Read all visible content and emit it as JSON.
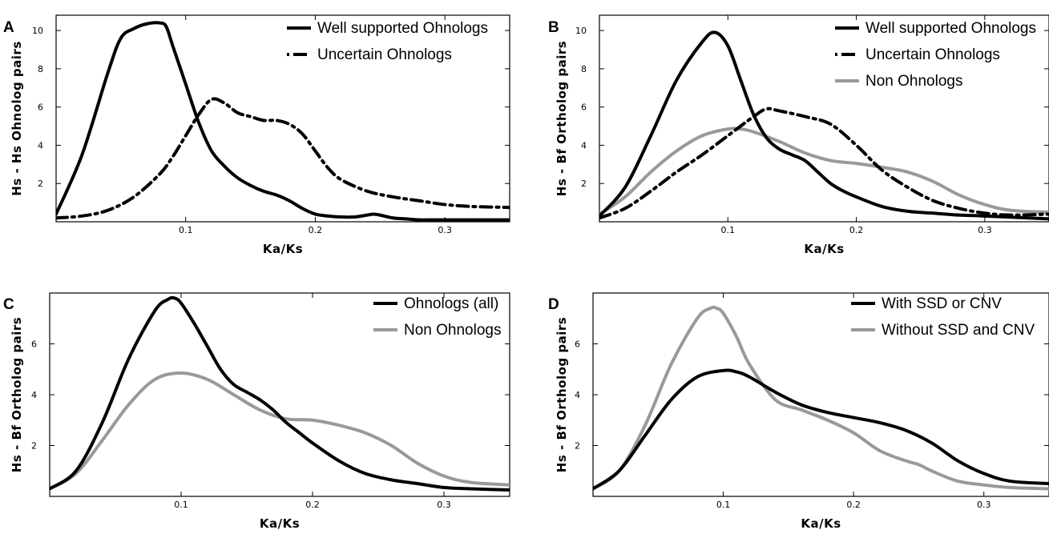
{
  "chart_data": [
    {
      "panel": "A",
      "type": "line",
      "xlabel": "Ka/Ks",
      "ylabel": "Hs - Hs Ohnolog pairs",
      "xlim": [
        0,
        0.35
      ],
      "ylim": [
        0,
        10.8
      ],
      "xticks": [
        0.1,
        0.2,
        0.3
      ],
      "yticks": [
        2,
        4,
        6,
        8,
        10
      ],
      "grid": false,
      "legend_position": "top-right",
      "series": [
        {
          "name": "Well supported Ohnologs",
          "color": "#000000",
          "dash": "solid",
          "x": [
            0,
            0.02,
            0.04,
            0.05,
            0.06,
            0.07,
            0.08,
            0.085,
            0.09,
            0.1,
            0.11,
            0.12,
            0.13,
            0.14,
            0.15,
            0.16,
            0.17,
            0.18,
            0.19,
            0.2,
            0.21,
            0.22,
            0.23,
            0.24,
            0.245,
            0.25,
            0.26,
            0.27,
            0.28,
            0.29,
            0.3,
            0.35
          ],
          "y": [
            0.4,
            3.5,
            7.8,
            9.6,
            10.1,
            10.35,
            10.4,
            10.2,
            9.2,
            7.2,
            5.2,
            3.7,
            2.9,
            2.3,
            1.9,
            1.6,
            1.4,
            1.1,
            0.7,
            0.4,
            0.3,
            0.25,
            0.25,
            0.35,
            0.4,
            0.35,
            0.2,
            0.15,
            0.1,
            0.1,
            0.1,
            0.1
          ]
        },
        {
          "name": "Uncertain Ohnologs",
          "color": "#000000",
          "dash": "dashdot",
          "x": [
            0,
            0.02,
            0.04,
            0.06,
            0.08,
            0.09,
            0.1,
            0.11,
            0.12,
            0.13,
            0.14,
            0.15,
            0.16,
            0.17,
            0.18,
            0.19,
            0.2,
            0.21,
            0.22,
            0.24,
            0.26,
            0.28,
            0.3,
            0.32,
            0.35
          ],
          "y": [
            0.2,
            0.3,
            0.6,
            1.3,
            2.5,
            3.4,
            4.5,
            5.6,
            6.4,
            6.2,
            5.7,
            5.5,
            5.3,
            5.3,
            5.1,
            4.6,
            3.7,
            2.8,
            2.2,
            1.6,
            1.3,
            1.1,
            0.9,
            0.8,
            0.75
          ]
        }
      ]
    },
    {
      "panel": "B",
      "type": "line",
      "xlabel": "Ka/Ks",
      "ylabel": "Hs - Bf Ortholog pairs",
      "xlim": [
        0,
        0.35
      ],
      "ylim": [
        0,
        10.8
      ],
      "xticks": [
        0.1,
        0.2,
        0.3
      ],
      "yticks": [
        2,
        4,
        6,
        8,
        10
      ],
      "grid": false,
      "legend_position": "top-right",
      "series": [
        {
          "name": "Well supported Ohnologs",
          "color": "#000000",
          "dash": "solid",
          "x": [
            0,
            0.02,
            0.04,
            0.06,
            0.08,
            0.09,
            0.1,
            0.11,
            0.12,
            0.13,
            0.14,
            0.15,
            0.16,
            0.17,
            0.18,
            0.19,
            0.2,
            0.22,
            0.24,
            0.26,
            0.28,
            0.3,
            0.35
          ],
          "y": [
            0.3,
            1.8,
            4.5,
            7.4,
            9.4,
            9.9,
            9.2,
            7.4,
            5.6,
            4.4,
            3.8,
            3.5,
            3.2,
            2.6,
            2.0,
            1.6,
            1.3,
            0.8,
            0.55,
            0.45,
            0.35,
            0.3,
            0.15
          ]
        },
        {
          "name": "Uncertain Ohnologs",
          "color": "#000000",
          "dash": "dashdot",
          "x": [
            0,
            0.02,
            0.04,
            0.06,
            0.08,
            0.1,
            0.12,
            0.13,
            0.14,
            0.16,
            0.18,
            0.2,
            0.22,
            0.24,
            0.26,
            0.28,
            0.3,
            0.32,
            0.35
          ],
          "y": [
            0.2,
            0.7,
            1.6,
            2.6,
            3.5,
            4.5,
            5.5,
            5.9,
            5.8,
            5.5,
            5.1,
            4.0,
            2.7,
            1.8,
            1.1,
            0.7,
            0.45,
            0.35,
            0.4
          ]
        },
        {
          "name": "Non Ohnologs",
          "color": "#999999",
          "dash": "solid",
          "x": [
            0,
            0.02,
            0.04,
            0.06,
            0.08,
            0.1,
            0.11,
            0.12,
            0.14,
            0.16,
            0.18,
            0.2,
            0.22,
            0.24,
            0.26,
            0.28,
            0.3,
            0.32,
            0.35
          ],
          "y": [
            0.4,
            1.3,
            2.6,
            3.7,
            4.5,
            4.85,
            4.85,
            4.7,
            4.2,
            3.6,
            3.2,
            3.05,
            2.85,
            2.6,
            2.1,
            1.4,
            0.9,
            0.6,
            0.5
          ]
        }
      ]
    },
    {
      "panel": "C",
      "type": "line",
      "xlabel": "Ka/Ks",
      "ylabel": "Hs - Bf Ortholog pairs",
      "xlim": [
        0,
        0.35
      ],
      "ylim": [
        0,
        8.0
      ],
      "xticks": [
        0.1,
        0.2,
        0.3
      ],
      "yticks": [
        2,
        4,
        6
      ],
      "grid": false,
      "legend_position": "top-right",
      "series": [
        {
          "name": "Ohnologs (all)",
          "color": "#000000",
          "dash": "solid",
          "x": [
            0,
            0.02,
            0.04,
            0.06,
            0.08,
            0.09,
            0.095,
            0.1,
            0.11,
            0.12,
            0.13,
            0.14,
            0.15,
            0.16,
            0.17,
            0.18,
            0.19,
            0.2,
            0.22,
            0.24,
            0.26,
            0.28,
            0.3,
            0.32,
            0.35
          ],
          "y": [
            0.3,
            1.0,
            2.9,
            5.4,
            7.3,
            7.75,
            7.8,
            7.6,
            6.8,
            5.9,
            5.0,
            4.4,
            4.1,
            3.8,
            3.4,
            2.9,
            2.5,
            2.1,
            1.4,
            0.9,
            0.65,
            0.5,
            0.35,
            0.3,
            0.25
          ]
        },
        {
          "name": "Non Ohnologs",
          "color": "#999999",
          "dash": "solid",
          "x": [
            0,
            0.02,
            0.04,
            0.06,
            0.08,
            0.1,
            0.12,
            0.14,
            0.16,
            0.18,
            0.2,
            0.22,
            0.24,
            0.26,
            0.28,
            0.3,
            0.32,
            0.35
          ],
          "y": [
            0.3,
            0.9,
            2.2,
            3.6,
            4.6,
            4.85,
            4.6,
            4.0,
            3.4,
            3.05,
            3.0,
            2.8,
            2.5,
            2.0,
            1.3,
            0.8,
            0.55,
            0.45
          ]
        }
      ]
    },
    {
      "panel": "D",
      "type": "line",
      "xlabel": "Ka/Ks",
      "ylabel": "Hs - Bf Ortholog pairs",
      "xlim": [
        0,
        0.35
      ],
      "ylim": [
        0,
        8.0
      ],
      "xticks": [
        0.1,
        0.2,
        0.3
      ],
      "yticks": [
        2,
        4,
        6
      ],
      "grid": false,
      "legend_position": "top-right",
      "series": [
        {
          "name": "With SSD or CNV",
          "color": "#000000",
          "dash": "solid",
          "x": [
            0,
            0.02,
            0.04,
            0.06,
            0.08,
            0.1,
            0.11,
            0.12,
            0.14,
            0.16,
            0.18,
            0.2,
            0.22,
            0.24,
            0.26,
            0.28,
            0.3,
            0.32,
            0.35
          ],
          "y": [
            0.3,
            1.0,
            2.4,
            3.8,
            4.7,
            4.95,
            4.9,
            4.7,
            4.1,
            3.6,
            3.3,
            3.1,
            2.9,
            2.6,
            2.1,
            1.4,
            0.9,
            0.6,
            0.5
          ]
        },
        {
          "name": "Without SSD and CNV",
          "color": "#999999",
          "dash": "solid",
          "x": [
            0,
            0.02,
            0.04,
            0.06,
            0.08,
            0.09,
            0.095,
            0.1,
            0.11,
            0.12,
            0.14,
            0.16,
            0.18,
            0.2,
            0.22,
            0.24,
            0.25,
            0.26,
            0.28,
            0.3,
            0.32,
            0.35
          ],
          "y": [
            0.3,
            1.0,
            2.8,
            5.2,
            7.0,
            7.4,
            7.4,
            7.2,
            6.3,
            5.2,
            3.8,
            3.4,
            3.0,
            2.5,
            1.8,
            1.4,
            1.25,
            1.0,
            0.6,
            0.45,
            0.35,
            0.3
          ]
        }
      ]
    }
  ]
}
